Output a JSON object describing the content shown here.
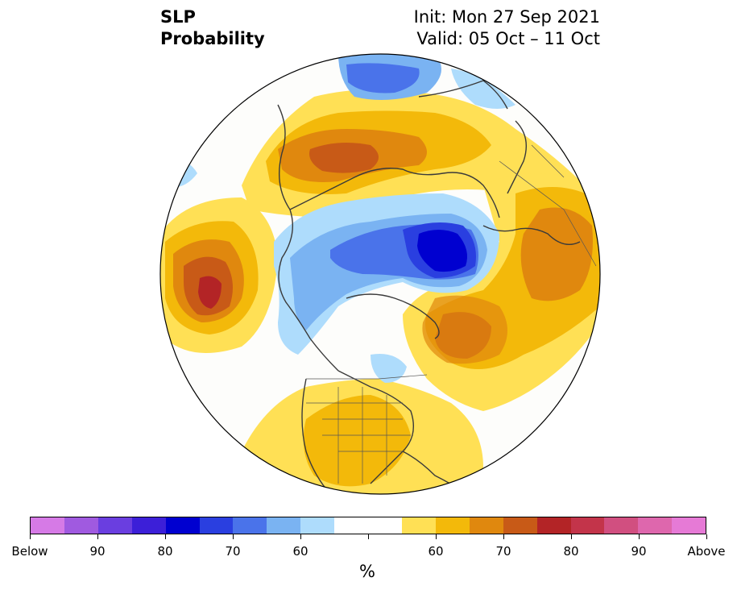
{
  "header": {
    "title_line1": "SLP",
    "title_line2": "Probability",
    "init": "Init: Mon 27 Sep 2021",
    "valid": "Valid: 05 Oct – 11 Oct"
  },
  "map": {
    "projection": "north-polar-stereographic",
    "features": [
      "sea-level-pressure-probability-shading",
      "coastlines",
      "country-borders",
      "us-state-borders"
    ]
  },
  "colorbar": {
    "unit": "%",
    "colors": [
      "#d67ae6",
      "#a05ae0",
      "#6a3ee0",
      "#3c1fd8",
      "#0000d0",
      "#2a3fe0",
      "#4a73ea",
      "#7ab3f2",
      "#aedcfc",
      "#ffffff",
      "#ffffff",
      "#ffe055",
      "#f3b90a",
      "#e0880e",
      "#c85a17",
      "#b32426",
      "#c3344a",
      "#d14f80",
      "#de67ad",
      "#e67ad6"
    ],
    "labels": [
      "Below",
      "90",
      "80",
      "70",
      "60",
      "60",
      "70",
      "80",
      "90",
      "Above"
    ]
  }
}
